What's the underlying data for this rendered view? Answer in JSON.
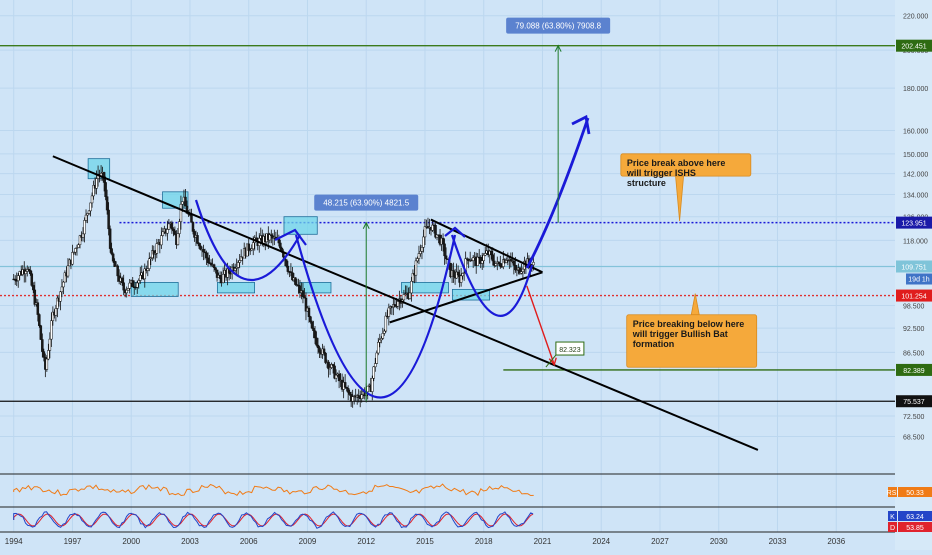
{
  "chart_data": {
    "type": "candlestick",
    "y_scale": "log",
    "ylim": [
      64,
      226
    ],
    "x_range": [
      1993.3,
      2039.0
    ],
    "x_ticks": [
      "1994",
      "1997",
      "2000",
      "2003",
      "2006",
      "2009",
      "2012",
      "2015",
      "2018",
      "2021",
      "2024",
      "2027",
      "2030",
      "2033",
      "2036"
    ],
    "y_ticks": [
      "220.000",
      "200.000",
      "180.000",
      "160.000",
      "150.000",
      "142.000",
      "134.000",
      "126.000",
      "118.000",
      "98.500",
      "92.500",
      "86.500",
      "72.500",
      "68.500"
    ],
    "price_path": [
      {
        "x": 1994.0,
        "y": 106
      },
      {
        "x": 1994.7,
        "y": 110
      },
      {
        "x": 1995.2,
        "y": 97
      },
      {
        "x": 1995.6,
        "y": 82
      },
      {
        "x": 1996.0,
        "y": 96
      },
      {
        "x": 1996.8,
        "y": 110
      },
      {
        "x": 1997.5,
        "y": 121
      },
      {
        "x": 1998.3,
        "y": 142
      },
      {
        "x": 1998.6,
        "y": 140
      },
      {
        "x": 1999.0,
        "y": 112
      },
      {
        "x": 1999.6,
        "y": 103
      },
      {
        "x": 2000.5,
        "y": 106
      },
      {
        "x": 2001.3,
        "y": 116
      },
      {
        "x": 2002.0,
        "y": 124
      },
      {
        "x": 2002.3,
        "y": 118
      },
      {
        "x": 2002.6,
        "y": 133
      },
      {
        "x": 2003.2,
        "y": 121
      },
      {
        "x": 2003.8,
        "y": 113
      },
      {
        "x": 2004.5,
        "y": 106
      },
      {
        "x": 2005.0,
        "y": 108
      },
      {
        "x": 2005.6,
        "y": 113
      },
      {
        "x": 2006.2,
        "y": 117
      },
      {
        "x": 2007.1,
        "y": 119
      },
      {
        "x": 2007.6,
        "y": 117
      },
      {
        "x": 2008.2,
        "y": 106
      },
      {
        "x": 2008.8,
        "y": 101
      },
      {
        "x": 2009.2,
        "y": 92
      },
      {
        "x": 2009.8,
        "y": 86
      },
      {
        "x": 2010.6,
        "y": 80
      },
      {
        "x": 2011.3,
        "y": 76
      },
      {
        "x": 2011.7,
        "y": 77
      },
      {
        "x": 2012.2,
        "y": 78
      },
      {
        "x": 2012.6,
        "y": 88
      },
      {
        "x": 2013.1,
        "y": 96
      },
      {
        "x": 2013.6,
        "y": 100
      },
      {
        "x": 2014.2,
        "y": 102
      },
      {
        "x": 2014.6,
        "y": 112
      },
      {
        "x": 2015.0,
        "y": 121
      },
      {
        "x": 2015.3,
        "y": 123
      },
      {
        "x": 2015.8,
        "y": 118
      },
      {
        "x": 2016.3,
        "y": 108
      },
      {
        "x": 2016.8,
        "y": 106
      },
      {
        "x": 2017.2,
        "y": 113
      },
      {
        "x": 2017.7,
        "y": 111
      },
      {
        "x": 2018.2,
        "y": 114
      },
      {
        "x": 2018.7,
        "y": 110
      },
      {
        "x": 2019.2,
        "y": 113
      },
      {
        "x": 2019.7,
        "y": 108
      },
      {
        "x": 2020.1,
        "y": 111
      },
      {
        "x": 2020.6,
        "y": 110
      }
    ],
    "price_labels": [
      {
        "value": 202.451,
        "text": "202.451",
        "color": "#2e6b12"
      },
      {
        "value": 123.951,
        "text": "123.951",
        "color": "#1a1aa8"
      },
      {
        "value": 109.751,
        "text": "109.751",
        "color": "#7fc4d9"
      },
      {
        "value": 101.254,
        "text": "101.254",
        "color": "#e01d1d"
      },
      {
        "value": 82.389,
        "text": "82.389",
        "color": "#2e6b12"
      },
      {
        "value": 75.537,
        "text": "75.537",
        "color": "#111111"
      }
    ],
    "countdown_label": "19d 1h",
    "horizontal_lines": [
      {
        "value": 202.451,
        "x_from": 1993.3,
        "color": "#3c7a1c",
        "style": "solid"
      },
      {
        "value": 123.951,
        "x_from": 1999.4,
        "color": "#1a1ad8",
        "style": "dotted"
      },
      {
        "value": 109.751,
        "x_from": 1993.3,
        "color": "#84c3da",
        "style": "solid"
      },
      {
        "value": 101.254,
        "x_from": 1993.3,
        "color": "#e03030",
        "style": "dotted"
      },
      {
        "value": 82.389,
        "x_from": 2019.0,
        "color": "#2e6b12",
        "style": "solid"
      },
      {
        "value": 75.537,
        "x_from": 1993.3,
        "color": "#111111",
        "style": "solid"
      }
    ],
    "trendlines": [
      {
        "from": {
          "x": 1996.0,
          "y": 149
        },
        "to": {
          "x": 2032.0,
          "y": 66
        },
        "color": "#000000"
      },
      {
        "from": {
          "x": 2015.3,
          "y": 125
        },
        "to": {
          "x": 2021.0,
          "y": 108
        },
        "color": "#000000"
      },
      {
        "from": {
          "x": 2013.2,
          "y": 94
        },
        "to": {
          "x": 2021.0,
          "y": 108
        },
        "color": "#000000"
      }
    ],
    "pattern_boxes": [
      {
        "x0": 1997.8,
        "x1": 1998.9,
        "y0": 140,
        "y1": 148
      },
      {
        "x0": 2000.0,
        "x1": 2002.4,
        "y0": 101,
        "y1": 105
      },
      {
        "x0": 2001.6,
        "x1": 2002.9,
        "y0": 129,
        "y1": 135
      },
      {
        "x0": 2007.8,
        "x1": 2009.5,
        "y0": 120,
        "y1": 126
      },
      {
        "x0": 2004.4,
        "x1": 2006.3,
        "y0": 102,
        "y1": 105
      },
      {
        "x0": 2008.6,
        "x1": 2010.2,
        "y0": 102,
        "y1": 105
      },
      {
        "x0": 2013.8,
        "x1": 2016.2,
        "y0": 102,
        "y1": 105
      },
      {
        "x0": 2016.4,
        "x1": 2018.3,
        "y0": 100,
        "y1": 103
      }
    ],
    "measurements": [
      {
        "text": "48.215 (63.90%) 4821.5",
        "x": 2012.0,
        "y_from": 75.5,
        "y_to": 123.9,
        "label_y": 131
      },
      {
        "text": "79.088 (63.80%) 7908.8",
        "x": 2021.8,
        "y_from": 123.9,
        "y_to": 202.5,
        "label_y": 214
      }
    ],
    "small_price_tag": {
      "text": "82.323",
      "x": 2022.4,
      "y": 87.3
    },
    "callouts": [
      {
        "text": "Price break above here will trigger ISHS structure",
        "x": 2025.0,
        "y_top": 150,
        "y_bottom": 141,
        "pointer_to": {
          "x": 2028.0,
          "y": 124.5
        }
      },
      {
        "text": "Price breaking below here will trigger Bullish Bat formation",
        "x": 2025.3,
        "y_top": 96,
        "y_bottom": 83,
        "pointer_to": {
          "x": 2028.8,
          "y": 101.8
        }
      }
    ],
    "indicators": [
      {
        "name": "RSI",
        "value": "50.33",
        "color": "#f07b16"
      },
      {
        "name": "K",
        "value": "63.24",
        "color": "#2445c8"
      },
      {
        "name": "D",
        "value": "53.85",
        "color": "#e0232d"
      }
    ]
  }
}
